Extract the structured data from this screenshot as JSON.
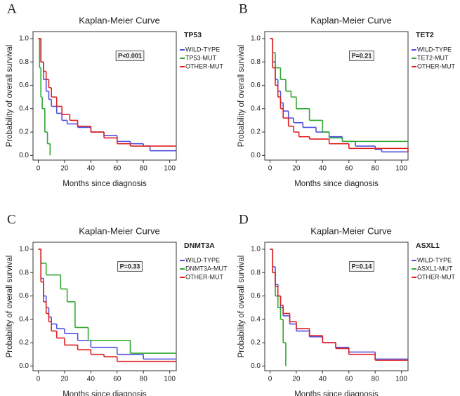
{
  "chart_data": [
    {
      "type": "line",
      "panel": "A",
      "title": "Kaplan-Meier Curve",
      "legend_title": "TP53",
      "annotation": "P<0.001",
      "x_label": "Months since diagnosis",
      "y_label": "Probability of overall survival",
      "xlim": [
        -4,
        105
      ],
      "ylim": [
        -0.04,
        1.06
      ],
      "xticks": [
        0,
        20,
        40,
        60,
        80,
        100
      ],
      "yticks": [
        {
          "value": 0,
          "label": "0.0"
        },
        0.2,
        0.4,
        0.6,
        0.8,
        {
          "value": 1,
          "label": "1.0"
        }
      ],
      "series": [
        {
          "name": "WILD-TYPE",
          "color": "#5050e0",
          "x": [
            0,
            2,
            4,
            6,
            8,
            10,
            14,
            18,
            22,
            30,
            40,
            50,
            60,
            70,
            80,
            85,
            105
          ],
          "values": [
            1,
            0.8,
            0.65,
            0.55,
            0.48,
            0.42,
            0.36,
            0.3,
            0.27,
            0.24,
            0.2,
            0.17,
            0.12,
            0.1,
            0.08,
            0.04,
            0.04
          ]
        },
        {
          "name": "TP53-MUT",
          "color": "#30a830",
          "x": [
            0,
            1,
            2,
            3,
            5,
            7,
            9
          ],
          "values": [
            1,
            0.75,
            0.5,
            0.4,
            0.2,
            0.1,
            0
          ]
        },
        {
          "name": "OTHER-MUT",
          "color": "#e02020",
          "x": [
            0,
            2,
            4,
            6,
            8,
            10,
            14,
            18,
            24,
            30,
            40,
            50,
            60,
            70,
            105
          ],
          "values": [
            1,
            0.8,
            0.72,
            0.65,
            0.58,
            0.5,
            0.42,
            0.35,
            0.3,
            0.25,
            0.2,
            0.15,
            0.1,
            0.08,
            0.08
          ]
        }
      ]
    },
    {
      "type": "line",
      "panel": "B",
      "title": "Kaplan-Meier Curve",
      "legend_title": "TET2",
      "annotation": "P=0.21",
      "x_label": "Months since diagnosis",
      "y_label": "Probability of overall survival",
      "xlim": [
        -4,
        105
      ],
      "ylim": [
        -0.04,
        1.06
      ],
      "xticks": [
        0,
        20,
        40,
        60,
        80,
        100
      ],
      "yticks": [
        {
          "value": 0,
          "label": "0.0"
        },
        0.2,
        0.4,
        0.6,
        0.8,
        {
          "value": 1,
          "label": "1.0"
        }
      ],
      "series": [
        {
          "name": "WILD-TYPE",
          "color": "#5050e0",
          "x": [
            0,
            2,
            4,
            6,
            8,
            10,
            14,
            18,
            25,
            35,
            45,
            55,
            65,
            80,
            85,
            105
          ],
          "values": [
            1,
            0.8,
            0.65,
            0.55,
            0.45,
            0.38,
            0.32,
            0.28,
            0.24,
            0.2,
            0.16,
            0.12,
            0.08,
            0.05,
            0.03,
            0.03
          ]
        },
        {
          "name": "TET2-MUT",
          "color": "#30a830",
          "x": [
            0,
            2,
            4,
            8,
            12,
            16,
            20,
            30,
            40,
            45,
            55,
            105
          ],
          "values": [
            1,
            0.88,
            0.75,
            0.65,
            0.55,
            0.5,
            0.4,
            0.3,
            0.2,
            0.15,
            0.12,
            0.12
          ]
        },
        {
          "name": "OTHER-MUT",
          "color": "#e02020",
          "x": [
            0,
            2,
            4,
            6,
            8,
            10,
            14,
            18,
            22,
            30,
            45,
            60,
            105
          ],
          "values": [
            1,
            0.75,
            0.6,
            0.5,
            0.4,
            0.32,
            0.25,
            0.2,
            0.16,
            0.14,
            0.1,
            0.06,
            0.03
          ]
        }
      ]
    },
    {
      "type": "line",
      "panel": "C",
      "title": "Kaplan-Meier Curve",
      "legend_title": "DNMT3A",
      "annotation": "P=0.33",
      "x_label": "Months since diagnosis",
      "y_label": "Probability of overall survival",
      "xlim": [
        -4,
        105
      ],
      "ylim": [
        -0.04,
        1.06
      ],
      "xticks": [
        0,
        20,
        40,
        60,
        80,
        100
      ],
      "yticks": [
        {
          "value": 0,
          "label": "0.0"
        },
        0.2,
        0.4,
        0.6,
        0.8,
        {
          "value": 1,
          "label": "1.0"
        }
      ],
      "series": [
        {
          "name": "WILD-TYPE",
          "color": "#5050e0",
          "x": [
            0,
            2,
            4,
            6,
            8,
            10,
            14,
            20,
            30,
            40,
            60,
            80,
            105
          ],
          "values": [
            1,
            0.75,
            0.6,
            0.5,
            0.42,
            0.36,
            0.32,
            0.28,
            0.22,
            0.16,
            0.1,
            0.06,
            0.06
          ]
        },
        {
          "name": "DNMT3A-MUT",
          "color": "#30a830",
          "x": [
            0,
            2,
            6,
            17,
            22,
            28,
            38,
            70,
            105
          ],
          "values": [
            1,
            0.88,
            0.78,
            0.66,
            0.55,
            0.33,
            0.22,
            0.11,
            0.11
          ]
        },
        {
          "name": "OTHER-MUT",
          "color": "#e02020",
          "x": [
            0,
            2,
            4,
            6,
            8,
            10,
            14,
            20,
            30,
            40,
            50,
            60,
            105
          ],
          "values": [
            1,
            0.72,
            0.55,
            0.45,
            0.38,
            0.3,
            0.24,
            0.18,
            0.14,
            0.1,
            0.08,
            0.04,
            0.04
          ]
        }
      ]
    },
    {
      "type": "line",
      "panel": "D",
      "title": "Kaplan-Meier Curve",
      "legend_title": "ASXL1",
      "annotation": "P=0.14",
      "x_label": "Months since diagnosis",
      "y_label": "Probability of overall survival",
      "xlim": [
        -4,
        105
      ],
      "ylim": [
        -0.04,
        1.06
      ],
      "xticks": [
        0,
        20,
        40,
        60,
        80,
        100
      ],
      "yticks": [
        {
          "value": 0,
          "label": "0.0"
        },
        0.2,
        0.4,
        0.6,
        0.8,
        {
          "value": 1,
          "label": "1.0"
        }
      ],
      "series": [
        {
          "name": "WILD-TYPE",
          "color": "#5050e0",
          "x": [
            0,
            2,
            4,
            6,
            8,
            10,
            15,
            20,
            30,
            40,
            50,
            60,
            80,
            105
          ],
          "values": [
            1,
            0.85,
            0.7,
            0.6,
            0.5,
            0.43,
            0.36,
            0.3,
            0.25,
            0.2,
            0.16,
            0.12,
            0.06,
            0.06
          ]
        },
        {
          "name": "ASXL1-MUT",
          "color": "#30a830",
          "x": [
            0,
            2,
            4,
            6,
            8,
            10,
            12
          ],
          "values": [
            1,
            0.8,
            0.6,
            0.5,
            0.4,
            0.2,
            0
          ]
        },
        {
          "name": "OTHER-MUT",
          "color": "#e02020",
          "x": [
            0,
            2,
            4,
            6,
            8,
            10,
            15,
            20,
            30,
            40,
            50,
            60,
            80,
            105
          ],
          "values": [
            1,
            0.8,
            0.68,
            0.6,
            0.52,
            0.45,
            0.38,
            0.32,
            0.26,
            0.2,
            0.15,
            0.1,
            0.05,
            0.05
          ]
        }
      ]
    }
  ]
}
